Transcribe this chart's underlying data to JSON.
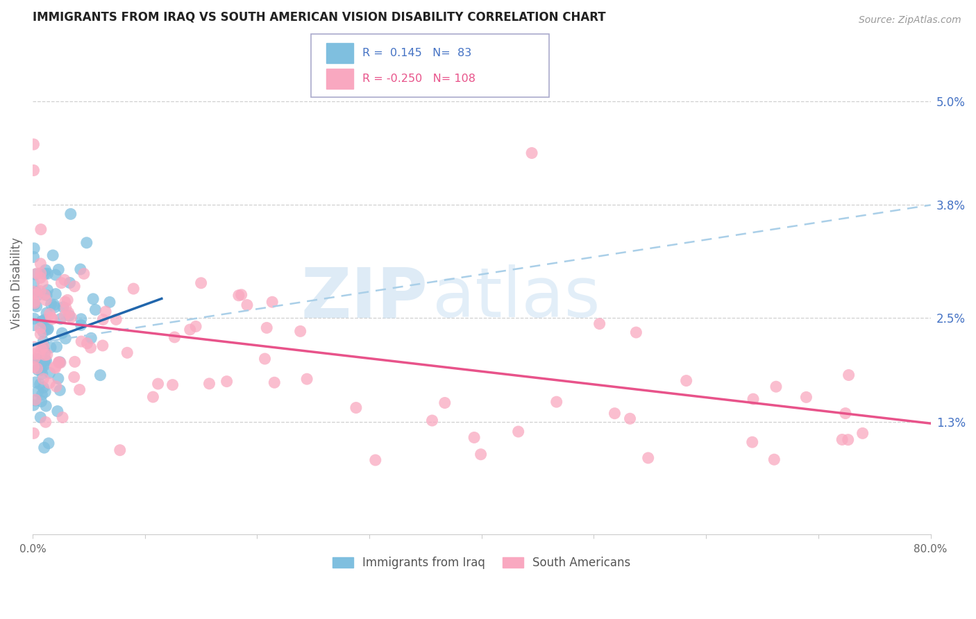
{
  "title": "IMMIGRANTS FROM IRAQ VS SOUTH AMERICAN VISION DISABILITY CORRELATION CHART",
  "source": "Source: ZipAtlas.com",
  "ylabel": "Vision Disability",
  "right_yticks": [
    0.013,
    0.025,
    0.038,
    0.05
  ],
  "right_yticklabels": [
    "1.3%",
    "2.5%",
    "3.8%",
    "5.0%"
  ],
  "xlim": [
    0.0,
    0.8
  ],
  "ylim": [
    0.0,
    0.058
  ],
  "color_iraq": "#7fbfdf",
  "color_south": "#f9a8c0",
  "color_iraq_line": "#2166ac",
  "color_south_line": "#e8538a",
  "color_dashed_line": "#aacfe8",
  "watermark_zip": "ZIP",
  "watermark_atlas": "atlas",
  "legend_label1": "Immigrants from Iraq",
  "legend_label2": "South Americans",
  "iraq_R": 0.145,
  "iraq_N": 83,
  "south_R": -0.25,
  "south_N": 108,
  "iraq_line_x0": 0.0,
  "iraq_line_y0": 0.0218,
  "iraq_line_x1": 0.115,
  "iraq_line_y1": 0.0272,
  "south_line_x0": 0.0,
  "south_line_y0": 0.0248,
  "south_line_x1": 0.8,
  "south_line_y1": 0.0128,
  "dashed_line_x0": 0.0,
  "dashed_line_y0": 0.022,
  "dashed_line_x1": 0.8,
  "dashed_line_y1": 0.038
}
